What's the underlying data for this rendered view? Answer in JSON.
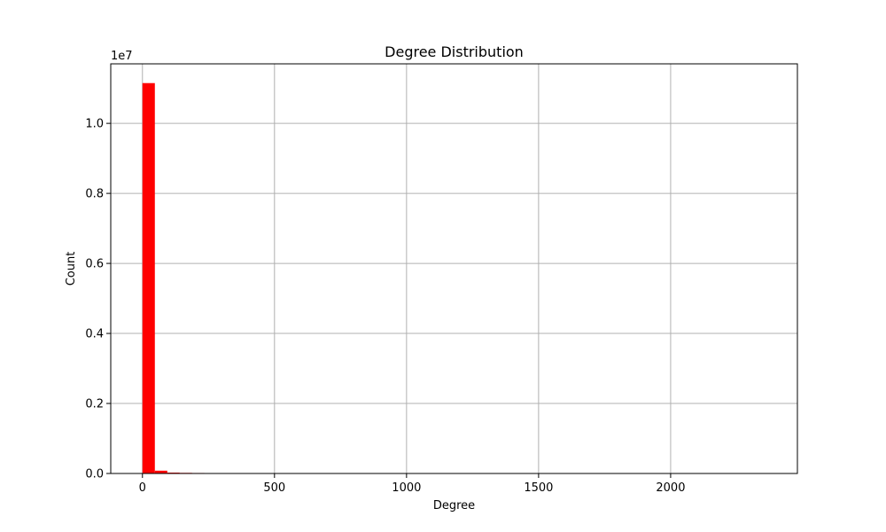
{
  "chart_data": {
    "type": "bar",
    "title": "Degree Distribution",
    "xlabel": "Degree",
    "ylabel": "Count",
    "y_offset_label": "1e7",
    "y_scale_factor": 10000000,
    "xlim": [
      -120,
      2480
    ],
    "ylim": [
      0,
      11700000
    ],
    "x_ticks": [
      0,
      500,
      1000,
      1500,
      2000
    ],
    "y_ticks": [
      0.0,
      0.2,
      0.4,
      0.6,
      0.8,
      1.0
    ],
    "y_tick_labels": [
      "0.0",
      "0.2",
      "0.4",
      "0.6",
      "0.8",
      "1.0"
    ],
    "grid": true,
    "bar_color": "#ff0000",
    "bin_width": 47,
    "bins": [
      {
        "x0": 0,
        "x1": 47,
        "value": 11150000
      },
      {
        "x0": 47,
        "x1": 94,
        "value": 80000
      },
      {
        "x0": 94,
        "x1": 141,
        "value": 25000
      },
      {
        "x0": 141,
        "x1": 188,
        "value": 18000
      },
      {
        "x0": 188,
        "x1": 235,
        "value": 14000
      },
      {
        "x0": 235,
        "x1": 282,
        "value": 11000
      },
      {
        "x0": 282,
        "x1": 329,
        "value": 9000
      },
      {
        "x0": 329,
        "x1": 376,
        "value": 3000
      },
      {
        "x0": 376,
        "x1": 423,
        "value": 1500
      },
      {
        "x0": 423,
        "x1": 470,
        "value": 800
      },
      {
        "x0": 470,
        "x1": 517,
        "value": 500
      }
    ]
  }
}
